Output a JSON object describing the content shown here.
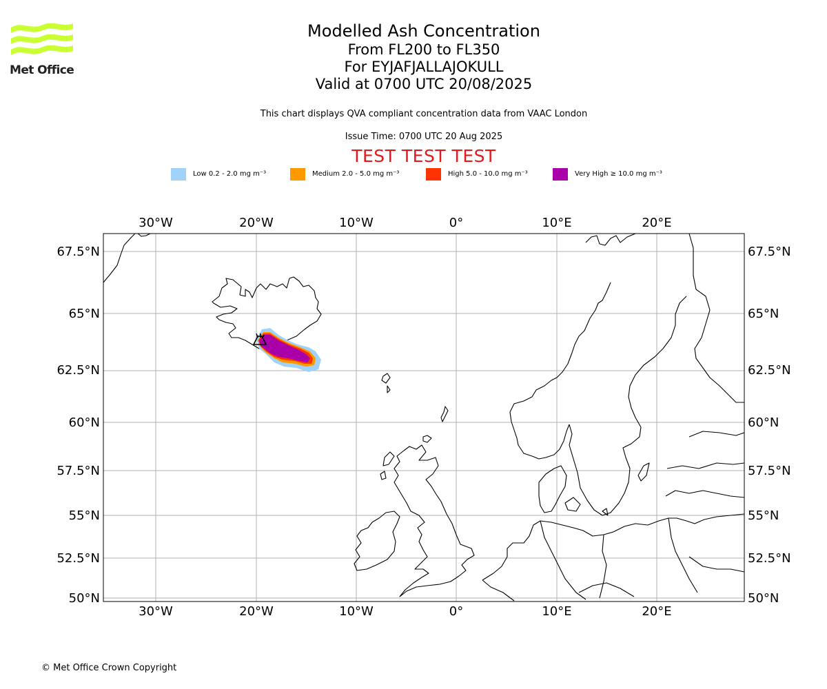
{
  "logo": {
    "text": "Met Office",
    "color": "#ccff33"
  },
  "title": {
    "line1": "Modelled Ash Concentration",
    "line2": "From FL200 to FL350",
    "line3": "For EYJAFJALLAJOKULL",
    "line4": "Valid at 0700 UTC 20/08/2025"
  },
  "subtitle": "This chart displays QVA compliant concentration data from VAAC London",
  "issue_time": "Issue Time: 0700 UTC 20 Aug 2025",
  "test_label": "TEST TEST TEST",
  "legend": [
    {
      "label": "Low 0.2 - 2.0 mg m⁻³",
      "color": "#a0d2fa"
    },
    {
      "label": "Medium 2.0 - 5.0 mg m⁻³",
      "color": "#ff9900"
    },
    {
      "label": "High 5.0 - 10.0 mg m⁻³",
      "color": "#ff3300"
    },
    {
      "label": "Very High ≥ 10.0 mg m⁻³",
      "color": "#aa00aa"
    }
  ],
  "map": {
    "lon_ticks": [
      "30°W",
      "20°W",
      "10°W",
      "0°",
      "10°E",
      "20°E"
    ],
    "lat_ticks": [
      "67.5°N",
      "65°N",
      "62.5°N",
      "60°N",
      "57.5°N",
      "55°N",
      "52.5°N",
      "50°N"
    ],
    "volcano": "EYJAFJALLAJOKULL",
    "grid": true
  },
  "copyright": "© Met Office Crown Copyright"
}
